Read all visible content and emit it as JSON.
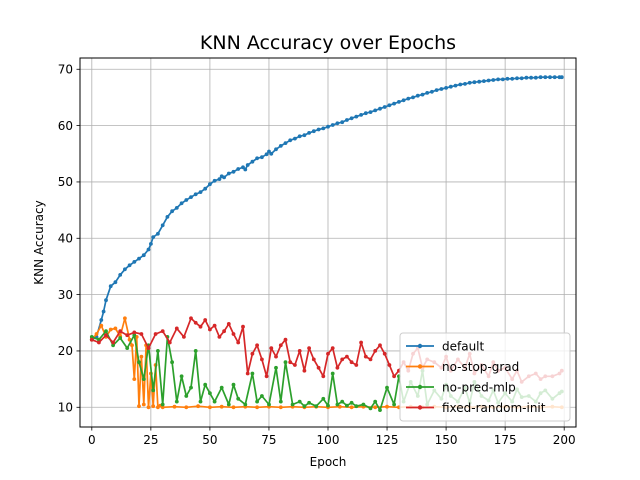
{
  "chart_data": {
    "type": "line",
    "title": "KNN Accuracy over Epochs",
    "xlabel": "Epoch",
    "ylabel": "KNN Accuracy",
    "xlim": [
      -5,
      205
    ],
    "ylim": [
      6.5,
      72
    ],
    "xticks": [
      0,
      25,
      50,
      75,
      100,
      125,
      150,
      175,
      200
    ],
    "yticks": [
      10,
      20,
      30,
      40,
      50,
      60,
      70
    ],
    "grid": true,
    "legend_position": "lower-right",
    "series": [
      {
        "name": "default",
        "color": "#1f77b4",
        "x": [
          0,
          2,
          4,
          5,
          6,
          8,
          10,
          12,
          14,
          16,
          18,
          20,
          22,
          24,
          25,
          26,
          28,
          30,
          32,
          34,
          36,
          38,
          40,
          42,
          44,
          46,
          48,
          50,
          52,
          54,
          55,
          56,
          58,
          60,
          62,
          64,
          65,
          66,
          68,
          70,
          72,
          74,
          75,
          76,
          78,
          80,
          82,
          84,
          86,
          88,
          90,
          92,
          94,
          96,
          98,
          100,
          102,
          104,
          106,
          108,
          110,
          112,
          114,
          116,
          118,
          120,
          122,
          124,
          126,
          128,
          130,
          132,
          134,
          136,
          138,
          140,
          142,
          144,
          146,
          148,
          150,
          152,
          154,
          156,
          158,
          160,
          162,
          164,
          166,
          168,
          170,
          172,
          174,
          176,
          178,
          180,
          182,
          184,
          186,
          188,
          190,
          192,
          194,
          196,
          198,
          199
        ],
        "y": [
          22.0,
          22.5,
          25.5,
          27.0,
          29.0,
          31.5,
          32.2,
          33.5,
          34.5,
          35.2,
          35.8,
          36.4,
          37.0,
          38.0,
          39.0,
          40.2,
          40.8,
          42.3,
          43.8,
          44.8,
          45.4,
          46.2,
          46.8,
          47.3,
          47.8,
          48.2,
          48.8,
          49.6,
          50.2,
          50.5,
          51.0,
          50.8,
          51.5,
          51.8,
          52.3,
          52.6,
          52.2,
          53.0,
          53.6,
          54.2,
          54.4,
          54.9,
          55.4,
          55.0,
          55.8,
          56.4,
          56.9,
          57.4,
          57.7,
          58.1,
          58.3,
          58.7,
          59.0,
          59.3,
          59.5,
          59.8,
          60.1,
          60.4,
          60.6,
          61.0,
          61.3,
          61.6,
          61.9,
          62.2,
          62.4,
          62.7,
          63.0,
          63.3,
          63.6,
          63.9,
          64.2,
          64.5,
          64.8,
          65.0,
          65.3,
          65.5,
          65.8,
          66.0,
          66.3,
          66.5,
          66.7,
          66.9,
          67.1,
          67.3,
          67.4,
          67.6,
          67.7,
          67.8,
          67.9,
          68.0,
          68.1,
          68.2,
          68.2,
          68.3,
          68.3,
          68.4,
          68.4,
          68.5,
          68.5,
          68.5,
          68.6,
          68.6,
          68.6,
          68.6,
          68.6,
          68.6
        ]
      },
      {
        "name": "no-stop-grad",
        "color": "#ff7f0e",
        "x": [
          0,
          2,
          4,
          6,
          8,
          10,
          12,
          14,
          16,
          17,
          18,
          19,
          20,
          21,
          22,
          23,
          24,
          25,
          26,
          27,
          28,
          29,
          30,
          35,
          40,
          45,
          50,
          55,
          60,
          65,
          70,
          75,
          80,
          85,
          90,
          95,
          100,
          105,
          110,
          115,
          120,
          125,
          130,
          135,
          140,
          145,
          150,
          155,
          160,
          165,
          170,
          175,
          180,
          185,
          190,
          195,
          199
        ],
        "y": [
          22.0,
          23.0,
          24.5,
          22.5,
          23.8,
          24.0,
          22.6,
          25.8,
          22.0,
          21.0,
          15.0,
          22.5,
          10.2,
          19.0,
          10.5,
          21.0,
          10.0,
          16.0,
          10.2,
          17.5,
          10.0,
          10.3,
          10.0,
          10.1,
          10.0,
          10.2,
          10.0,
          10.1,
          10.0,
          10.1,
          10.0,
          10.1,
          10.0,
          10.1,
          10.0,
          10.1,
          10.0,
          10.1,
          10.0,
          10.1,
          10.0,
          10.1,
          10.0,
          10.1,
          10.0,
          10.1,
          10.0,
          10.1,
          10.0,
          10.1,
          10.0,
          10.1,
          10.0,
          10.1,
          10.0,
          10.1,
          10.0
        ]
      },
      {
        "name": "no-pred-mlp",
        "color": "#2ca02c",
        "x": [
          0,
          3,
          6,
          9,
          12,
          15,
          18,
          20,
          22,
          24,
          26,
          28,
          30,
          32,
          34,
          36,
          38,
          40,
          42,
          44,
          46,
          48,
          50,
          52,
          55,
          58,
          60,
          62,
          65,
          68,
          70,
          72,
          75,
          78,
          80,
          82,
          85,
          88,
          90,
          92,
          95,
          98,
          100,
          102,
          104,
          106,
          108,
          110,
          112,
          115,
          118,
          120,
          122,
          125,
          128,
          130,
          132,
          135,
          138,
          140,
          142,
          145,
          148,
          150,
          152,
          155,
          158,
          160,
          162,
          165,
          168,
          170,
          172,
          175,
          178,
          180,
          182,
          185,
          188,
          190,
          192,
          195,
          198,
          199
        ],
        "y": [
          22.5,
          22.0,
          23.5,
          21.0,
          22.3,
          20.5,
          22.8,
          18.0,
          15.0,
          21.0,
          13.0,
          20.0,
          10.5,
          22.5,
          18.0,
          11.0,
          15.5,
          12.0,
          13.5,
          20.0,
          11.0,
          14.0,
          12.5,
          11.0,
          13.5,
          10.5,
          14.0,
          11.5,
          10.5,
          16.0,
          11.0,
          12.0,
          10.5,
          17.0,
          11.0,
          18.0,
          10.5,
          11.0,
          10.2,
          10.8,
          10.2,
          11.5,
          10.3,
          16.0,
          10.5,
          11.0,
          10.3,
          10.8,
          10.2,
          10.5,
          9.8,
          11.0,
          9.5,
          13.5,
          10.5,
          15.5,
          11.0,
          14.5,
          12.0,
          16.5,
          10.5,
          13.0,
          11.5,
          14.0,
          12.0,
          11.0,
          13.5,
          10.8,
          14.5,
          12.0,
          11.2,
          13.0,
          10.8,
          12.5,
          11.0,
          13.2,
          11.8,
          12.0,
          11.0,
          12.5,
          13.0,
          11.5,
          12.5,
          12.8
        ]
      },
      {
        "name": "fixed-random-init",
        "color": "#d62728",
        "x": [
          0,
          3,
          6,
          9,
          12,
          15,
          18,
          21,
          24,
          27,
          30,
          33,
          36,
          39,
          42,
          44,
          46,
          48,
          50,
          52,
          54,
          56,
          58,
          60,
          62,
          64,
          66,
          68,
          70,
          72,
          74,
          76,
          78,
          80,
          82,
          84,
          86,
          88,
          90,
          92,
          94,
          96,
          98,
          100,
          102,
          104,
          106,
          108,
          110,
          112,
          114,
          116,
          118,
          120,
          122,
          124,
          126,
          128,
          130,
          132,
          134,
          136,
          138,
          140,
          142,
          145,
          148,
          150,
          152,
          155,
          158,
          160,
          162,
          165,
          168,
          170,
          172,
          175,
          178,
          180,
          182,
          185,
          188,
          190,
          192,
          195,
          198,
          199
        ],
        "y": [
          22.0,
          21.5,
          22.8,
          21.5,
          23.5,
          22.8,
          23.3,
          23.0,
          20.5,
          23.0,
          23.5,
          21.5,
          24.0,
          22.5,
          25.8,
          25.0,
          24.3,
          25.5,
          23.8,
          24.5,
          22.5,
          23.5,
          24.8,
          23.0,
          21.5,
          24.3,
          16.0,
          19.5,
          21.0,
          18.5,
          15.5,
          20.5,
          19.0,
          21.0,
          22.0,
          18.0,
          17.5,
          20.0,
          16.5,
          20.5,
          18.5,
          17.0,
          15.5,
          19.5,
          20.5,
          17.0,
          18.5,
          19.0,
          18.0,
          17.5,
          21.5,
          19.0,
          18.5,
          20.0,
          21.0,
          19.5,
          17.5,
          15.5,
          16.5,
          18.0,
          16.5,
          19.5,
          20.5,
          17.0,
          18.5,
          18.0,
          17.0,
          19.0,
          16.5,
          18.5,
          17.0,
          19.5,
          16.0,
          17.5,
          15.5,
          18.0,
          16.5,
          17.0,
          15.0,
          16.5,
          14.5,
          15.5,
          16.0,
          15.0,
          15.5,
          15.5,
          16.0,
          16.5
        ]
      }
    ]
  }
}
